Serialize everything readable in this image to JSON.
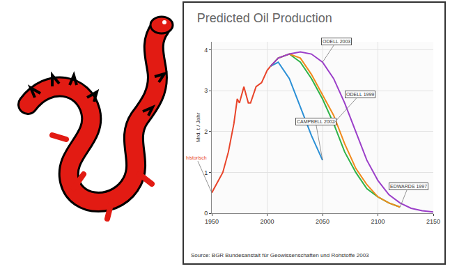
{
  "chart_data": {
    "type": "line",
    "title": "Predicted Oil Production",
    "ylabel": "Mrd. t / Jahr",
    "annotations": [
      "Source: BGR Bundesanstalt für Geowissenschaften und Rohstoffe 2003"
    ],
    "xlim": [
      1950,
      2150
    ],
    "xticks": [
      1950,
      2000,
      2050,
      2100,
      2150
    ],
    "ylim": [
      0,
      4.2
    ],
    "yticks": [
      0,
      1,
      2,
      3,
      4
    ],
    "grid": true,
    "series": [
      {
        "name": "historisch",
        "color": "#e8442a",
        "x": [
          1950,
          1955,
          1960,
          1965,
          1970,
          1973,
          1975,
          1979,
          1983,
          1985,
          1990,
          1995,
          2000,
          2003
        ],
        "values": [
          0.5,
          0.75,
          1.0,
          1.5,
          2.2,
          2.8,
          2.7,
          3.1,
          2.7,
          2.7,
          3.1,
          3.2,
          3.5,
          3.6
        ]
      },
      {
        "name": "CAMPBELL 2002",
        "color": "#2a8fd6",
        "x": [
          2003,
          2010,
          2020,
          2030,
          2040,
          2050
        ],
        "values": [
          3.6,
          3.7,
          3.3,
          2.6,
          1.9,
          1.3
        ]
      },
      {
        "name": "ODELL 1999",
        "color": "#2fb34a",
        "x": [
          2003,
          2010,
          2020,
          2030,
          2040,
          2050,
          2060,
          2070,
          2080,
          2090,
          2100,
          2110,
          2120
        ],
        "values": [
          3.6,
          3.8,
          3.9,
          3.7,
          3.3,
          2.8,
          2.2,
          1.5,
          1.0,
          0.6,
          0.4,
          0.25,
          0.15
        ]
      },
      {
        "name": "EDWARDS 1997",
        "color": "#f08a1c",
        "x": [
          2003,
          2010,
          2020,
          2030,
          2040,
          2050,
          2060,
          2070,
          2080,
          2090,
          2100,
          2110,
          2120
        ],
        "values": [
          3.6,
          3.8,
          3.9,
          3.8,
          3.4,
          2.9,
          2.4,
          1.7,
          1.1,
          0.7,
          0.4,
          0.25,
          0.15
        ]
      },
      {
        "name": "ODELL 2003",
        "color": "#9b3fc9",
        "x": [
          2003,
          2010,
          2020,
          2030,
          2040,
          2050,
          2060,
          2070,
          2080,
          2090,
          2100,
          2110,
          2120,
          2130,
          2140,
          2150
        ],
        "values": [
          3.6,
          3.8,
          3.9,
          3.95,
          3.9,
          3.7,
          3.3,
          2.7,
          2.0,
          1.3,
          0.8,
          0.45,
          0.25,
          0.12,
          0.06,
          0.03
        ]
      }
    ]
  }
}
